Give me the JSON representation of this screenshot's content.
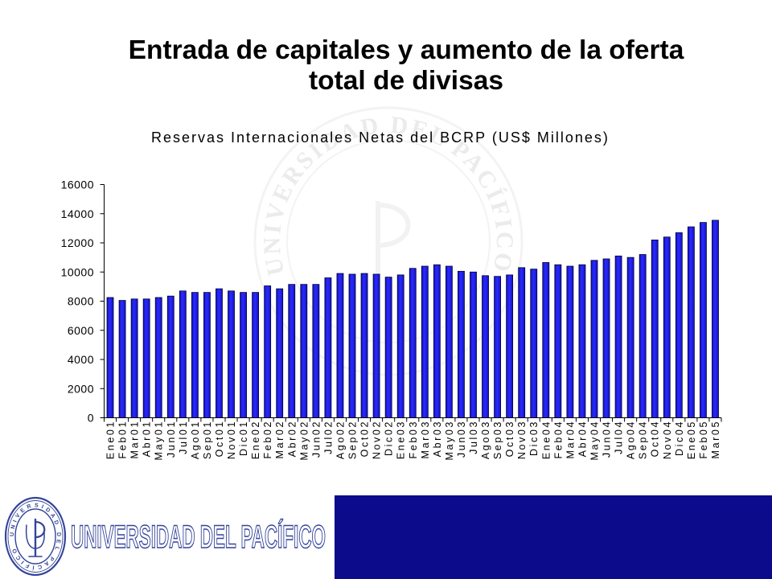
{
  "slide": {
    "title_line1": "Entrada de capitales y aumento de la oferta",
    "title_line2": "total de divisas"
  },
  "logo": {
    "name": "UNIVERSIDAD DEL PACÍFICO"
  },
  "colors": {
    "bar": "#2a2aff",
    "bar_shade": "#1414c0",
    "bar_edge": "#000033",
    "axis": "#000000",
    "footer_band": "#0b0b8c",
    "logo": "#34449a",
    "watermark": "#ebebeb"
  },
  "chart_data": {
    "type": "bar",
    "title": "Reservas Internacionales Netas del BCRP (US$ Millones)",
    "ylim": [
      0,
      16000
    ],
    "yticks": [
      0,
      2000,
      4000,
      6000,
      8000,
      10000,
      12000,
      14000,
      16000
    ],
    "grid": false,
    "legend": "none",
    "categories": [
      "Ene01",
      "Feb01",
      "Mar01",
      "Abr01",
      "May01",
      "Jun01",
      "Jul01",
      "Ago01",
      "Sep01",
      "Oct01",
      "Nov01",
      "Dic01",
      "Ene02",
      "Feb02",
      "Mar02",
      "Abr02",
      "May02",
      "Jun02",
      "Jul02",
      "Ago02",
      "Sep02",
      "Oct02",
      "Nov02",
      "Dic02",
      "Ene03",
      "Feb03",
      "Mar03",
      "Abr03",
      "May03",
      "Jun03",
      "Jul03",
      "Ago03",
      "Sep03",
      "Oct03",
      "Nov03",
      "Dic03",
      "Ene04",
      "Feb04",
      "Mar04",
      "Abr04",
      "May04",
      "Jun04",
      "Jul04",
      "Ago04",
      "Sep04",
      "Oct04",
      "Nov04",
      "Dic04",
      "Ene05",
      "Feb05",
      "Mar05"
    ],
    "values": [
      8250,
      8050,
      8150,
      8150,
      8250,
      8350,
      8700,
      8600,
      8600,
      8850,
      8700,
      8600,
      8600,
      9050,
      8850,
      9150,
      9150,
      9150,
      9600,
      9900,
      9850,
      9900,
      9850,
      9650,
      9800,
      10250,
      10400,
      10500,
      10400,
      10050,
      10000,
      9750,
      9700,
      9800,
      10300,
      10200,
      10650,
      10500,
      10400,
      10500,
      10800,
      10900,
      11100,
      11000,
      11200,
      12200,
      12400,
      12700,
      13100,
      13400,
      13550
    ]
  }
}
